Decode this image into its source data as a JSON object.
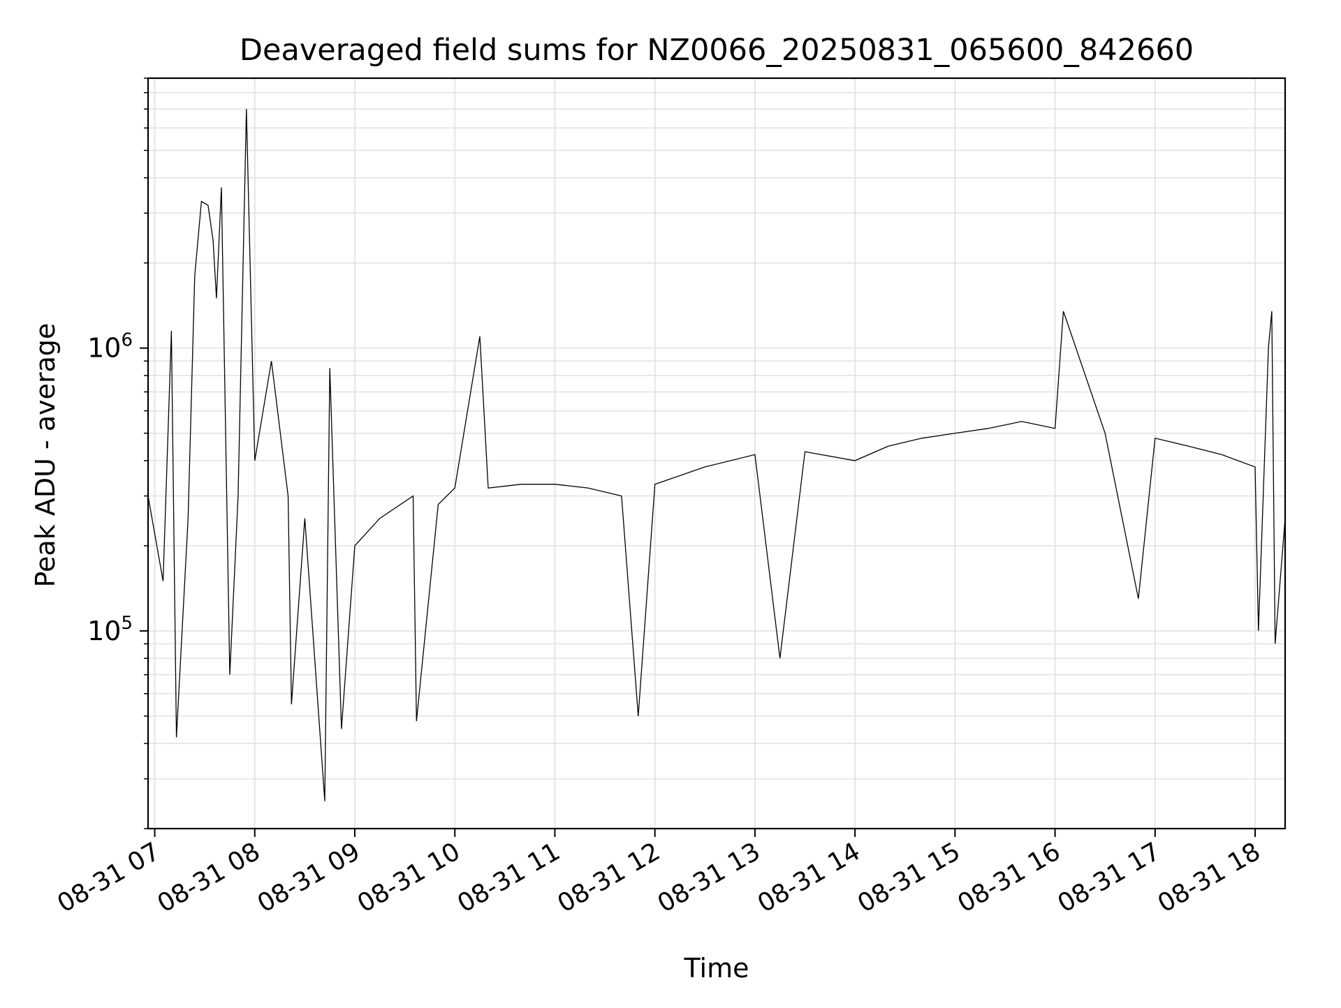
{
  "chart_data": {
    "type": "line",
    "title": "Deaveraged field sums for NZ0066_20250831_065600_842660",
    "xlabel": "Time",
    "ylabel": "Peak ADU - average",
    "x_range": [
      "2025-08-31 06:56",
      "2025-08-31 18:18"
    ],
    "x_ticks": [
      {
        "t": "2025-08-31 07:00",
        "label": "08-31 07"
      },
      {
        "t": "2025-08-31 08:00",
        "label": "08-31 08"
      },
      {
        "t": "2025-08-31 09:00",
        "label": "08-31 09"
      },
      {
        "t": "2025-08-31 10:00",
        "label": "08-31 10"
      },
      {
        "t": "2025-08-31 11:00",
        "label": "08-31 11"
      },
      {
        "t": "2025-08-31 12:00",
        "label": "08-31 12"
      },
      {
        "t": "2025-08-31 13:00",
        "label": "08-31 13"
      },
      {
        "t": "2025-08-31 14:00",
        "label": "08-31 14"
      },
      {
        "t": "2025-08-31 15:00",
        "label": "08-31 15"
      },
      {
        "t": "2025-08-31 16:00",
        "label": "08-31 16"
      },
      {
        "t": "2025-08-31 17:00",
        "label": "08-31 17"
      },
      {
        "t": "2025-08-31 18:00",
        "label": "08-31 18"
      }
    ],
    "y_scale": "log",
    "ylim": [
      20000,
      9000000
    ],
    "y_ticks": [
      {
        "value": 100000,
        "base": "10",
        "exp": "5"
      },
      {
        "value": 1000000,
        "base": "10",
        "exp": "6"
      }
    ],
    "grid": true,
    "line_color": "#000000",
    "series": [
      {
        "values": [
          [
            "2025-08-31 06:56",
            300000
          ],
          [
            "2025-08-31 07:05",
            150000
          ],
          [
            "2025-08-31 07:10",
            1150000
          ],
          [
            "2025-08-31 07:13",
            42000
          ],
          [
            "2025-08-31 07:20",
            250000
          ],
          [
            "2025-08-31 07:24",
            1800000
          ],
          [
            "2025-08-31 07:28",
            3300000
          ],
          [
            "2025-08-31 07:32",
            3200000
          ],
          [
            "2025-08-31 07:35",
            2400000
          ],
          [
            "2025-08-31 07:37",
            1500000
          ],
          [
            "2025-08-31 07:40",
            3700000
          ],
          [
            "2025-08-31 07:45",
            70000
          ],
          [
            "2025-08-31 07:50",
            300000
          ],
          [
            "2025-08-31 07:55",
            7000000
          ],
          [
            "2025-08-31 08:00",
            400000
          ],
          [
            "2025-08-31 08:10",
            900000
          ],
          [
            "2025-08-31 08:20",
            300000
          ],
          [
            "2025-08-31 08:22",
            55000
          ],
          [
            "2025-08-31 08:30",
            250000
          ],
          [
            "2025-08-31 08:42",
            25000
          ],
          [
            "2025-08-31 08:45",
            850000
          ],
          [
            "2025-08-31 08:52",
            45000
          ],
          [
            "2025-08-31 09:00",
            200000
          ],
          [
            "2025-08-31 09:15",
            250000
          ],
          [
            "2025-08-31 09:35",
            300000
          ],
          [
            "2025-08-31 09:37",
            48000
          ],
          [
            "2025-08-31 09:50",
            280000
          ],
          [
            "2025-08-31 10:00",
            320000
          ],
          [
            "2025-08-31 10:15",
            1100000
          ],
          [
            "2025-08-31 10:20",
            320000
          ],
          [
            "2025-08-31 10:40",
            330000
          ],
          [
            "2025-08-31 11:00",
            330000
          ],
          [
            "2025-08-31 11:20",
            320000
          ],
          [
            "2025-08-31 11:40",
            300000
          ],
          [
            "2025-08-31 11:50",
            50000
          ],
          [
            "2025-08-31 12:00",
            330000
          ],
          [
            "2025-08-31 12:30",
            380000
          ],
          [
            "2025-08-31 13:00",
            420000
          ],
          [
            "2025-08-31 13:15",
            80000
          ],
          [
            "2025-08-31 13:30",
            430000
          ],
          [
            "2025-08-31 14:00",
            400000
          ],
          [
            "2025-08-31 14:20",
            450000
          ],
          [
            "2025-08-31 14:40",
            480000
          ],
          [
            "2025-08-31 15:00",
            500000
          ],
          [
            "2025-08-31 15:20",
            520000
          ],
          [
            "2025-08-31 15:40",
            550000
          ],
          [
            "2025-08-31 16:00",
            520000
          ],
          [
            "2025-08-31 16:05",
            1350000
          ],
          [
            "2025-08-31 16:30",
            500000
          ],
          [
            "2025-08-31 16:50",
            130000
          ],
          [
            "2025-08-31 17:00",
            480000
          ],
          [
            "2025-08-31 17:20",
            450000
          ],
          [
            "2025-08-31 17:40",
            420000
          ],
          [
            "2025-08-31 18:00",
            380000
          ],
          [
            "2025-08-31 18:02",
            100000
          ],
          [
            "2025-08-31 18:08",
            1000000
          ],
          [
            "2025-08-31 18:10",
            1350000
          ],
          [
            "2025-08-31 18:12",
            90000
          ],
          [
            "2025-08-31 18:18",
            250000
          ]
        ]
      }
    ]
  }
}
